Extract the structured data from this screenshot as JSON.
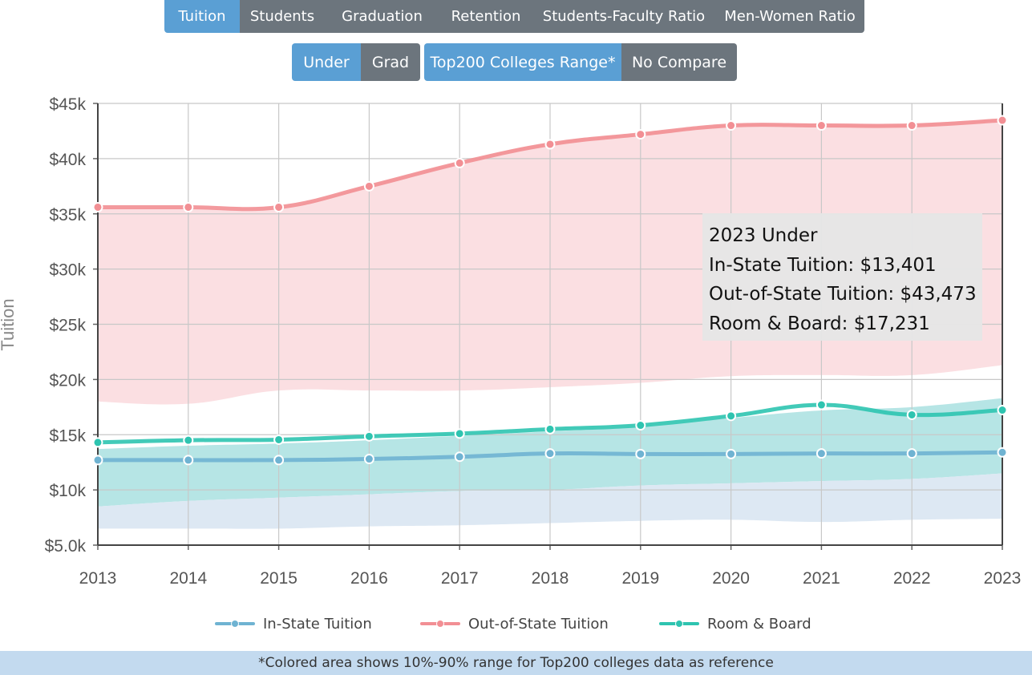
{
  "tabs": [
    {
      "label": "Tuition",
      "active": true
    },
    {
      "label": "Students",
      "active": false
    },
    {
      "label": "Graduation",
      "active": false
    },
    {
      "label": "Retention",
      "active": false
    },
    {
      "label": "Students-Faculty Ratio",
      "active": false
    },
    {
      "label": "Men-Women Ratio",
      "active": false
    }
  ],
  "level_toggle": [
    {
      "label": "Under",
      "active": true
    },
    {
      "label": "Grad",
      "active": false
    }
  ],
  "compare_toggle": [
    {
      "label": "Top200 Colleges Range*",
      "active": true
    },
    {
      "label": "No Compare",
      "active": false
    }
  ],
  "colors": {
    "active": "#5a9fd4",
    "inactive": "#6c757d",
    "in_state": "#6fb3d2",
    "out_state": "#f28f94",
    "room_board": "#2ec4b0",
    "range_in_state": "#dbe7f2",
    "range_out_state": "#fbdde0",
    "range_room_board": "#b2e4e4"
  },
  "tooltip": {
    "title": "2023 Under",
    "lines": [
      "In-State Tuition: $13,401",
      "Out-of-State Tuition: $43,473",
      "Room & Board: $17,231"
    ]
  },
  "footer_note": "*Colored area shows 10%-90% range for Top200 colleges data as reference",
  "chart_data": {
    "type": "line",
    "ylabel": "Tuition",
    "xlabel": "",
    "x": [
      "2013",
      "2014",
      "2015",
      "2016",
      "2017",
      "2018",
      "2019",
      "2020",
      "2021",
      "2022",
      "2023"
    ],
    "y_ticks": [
      "$5.0k",
      "$10k",
      "$15k",
      "$20k",
      "$25k",
      "$30k",
      "$35k",
      "$40k",
      "$45k"
    ],
    "ylim": [
      5000,
      45000
    ],
    "grid": true,
    "legend_position": "bottom",
    "series": [
      {
        "name": "In-State Tuition",
        "color": "#6fb3d2",
        "values": [
          12700,
          12700,
          12700,
          12800,
          13000,
          13300,
          13250,
          13250,
          13300,
          13300,
          13401
        ]
      },
      {
        "name": "Out-of-State Tuition",
        "color": "#f28f94",
        "values": [
          35600,
          35600,
          35600,
          37500,
          39600,
          41300,
          42200,
          43000,
          43000,
          43000,
          43473
        ]
      },
      {
        "name": "Room & Board",
        "color": "#2ec4b0",
        "values": [
          14300,
          14500,
          14550,
          14850,
          15100,
          15500,
          15850,
          16700,
          17700,
          16800,
          17231
        ]
      }
    ],
    "ranges": [
      {
        "series": "Out-of-State Tuition",
        "color": "#fbdde0",
        "low": [
          18000,
          17800,
          19000,
          19000,
          19000,
          19300,
          19700,
          20300,
          20400,
          20400,
          21300
        ],
        "high": [
          35500,
          35500,
          35500,
          37600,
          39700,
          41500,
          42300,
          43100,
          43200,
          43200,
          43600
        ]
      },
      {
        "series": "Room & Board",
        "color": "#b2e4e4",
        "low": [
          8500,
          9000,
          9300,
          9600,
          9900,
          10000,
          10400,
          10600,
          10800,
          11000,
          11500
        ],
        "high": [
          13700,
          14000,
          14200,
          14500,
          14900,
          15300,
          15700,
          16500,
          17200,
          17500,
          18300
        ]
      },
      {
        "series": "In-State Tuition",
        "color": "#dbe7f2",
        "low": [
          6500,
          6500,
          6500,
          6700,
          6800,
          7000,
          7200,
          7300,
          7100,
          7300,
          7400
        ],
        "high": [
          8500,
          9000,
          9300,
          9600,
          9900,
          10000,
          10400,
          10600,
          10800,
          11000,
          11500
        ]
      }
    ]
  }
}
